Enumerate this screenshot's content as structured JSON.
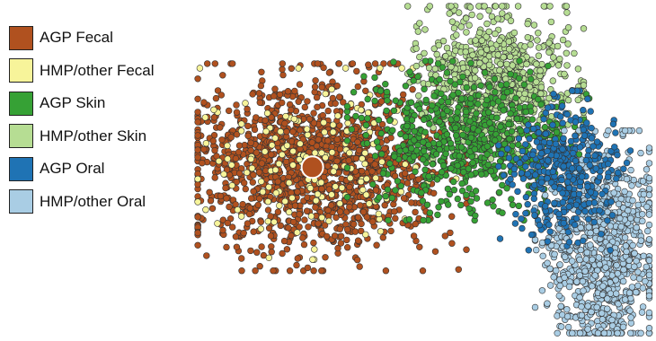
{
  "chart_data": {
    "type": "scatter",
    "title": "",
    "xlabel": "",
    "ylabel": "",
    "axes_visible": false,
    "grid": false,
    "legend_position": "top-left",
    "xlim": [
      -1,
      1
    ],
    "ylim": [
      -1,
      1
    ],
    "series": [
      {
        "name": "AGP Fecal",
        "color": "#b0511f",
        "cloud": {
          "center": [
            -0.48,
            0.02
          ],
          "spread": [
            0.28,
            0.26
          ],
          "count": 1400
        }
      },
      {
        "name": "HMP/other Fecal",
        "color": "#f7f49a",
        "cloud": {
          "center": [
            -0.45,
            0.04
          ],
          "spread": [
            0.26,
            0.24
          ],
          "count": 170
        }
      },
      {
        "name": "AGP Skin",
        "color": "#36a135",
        "cloud": {
          "center": [
            0.2,
            0.18
          ],
          "spread": [
            0.22,
            0.2
          ],
          "count": 650
        }
      },
      {
        "name": "HMP/other Skin",
        "color": "#b6dd93",
        "cloud": {
          "center": [
            0.32,
            0.55
          ],
          "spread": [
            0.16,
            0.2
          ],
          "count": 750
        }
      },
      {
        "name": "AGP Oral",
        "color": "#1f73b4",
        "cloud": {
          "center": [
            0.62,
            0.0
          ],
          "spread": [
            0.12,
            0.2
          ],
          "count": 380
        }
      },
      {
        "name": "HMP/other Oral",
        "color": "#a9cde4",
        "cloud": {
          "center": [
            0.78,
            -0.48
          ],
          "spread": [
            0.12,
            0.3
          ],
          "count": 900
        }
      }
    ],
    "highlight_point": {
      "series": "AGP Fecal",
      "x": -0.48,
      "y": 0.02
    }
  }
}
